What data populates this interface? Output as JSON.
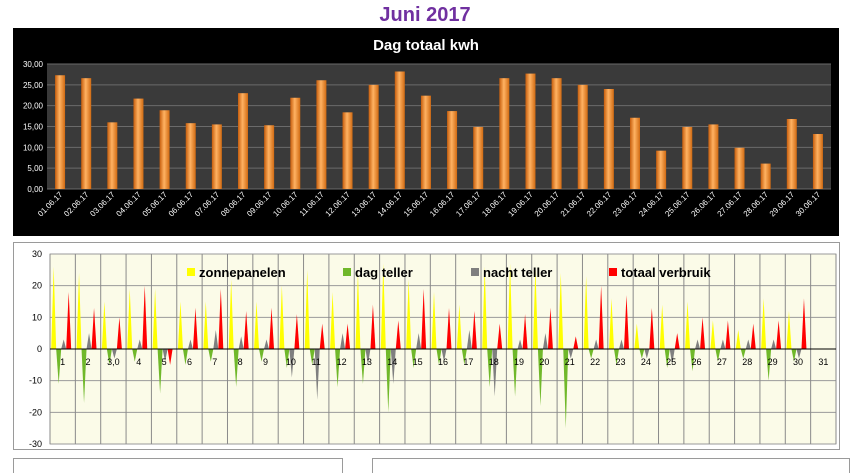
{
  "page": {
    "title": "Juni 2017"
  },
  "colors": {
    "title": "#7030a0",
    "chart1_background": "#000000",
    "chart1_plot": "#3a3a3a",
    "bar_orange": "#f08a24",
    "chart2_background": "#fbfbe8",
    "zonnepanelen": "#ffff00",
    "dag_teller": "#70b82a",
    "nacht_teller": "#7f7f7f",
    "totaal_verbruik": "#ff0000"
  },
  "chart_data": [
    {
      "type": "bar",
      "title": "Dag totaal kwh",
      "categories": [
        "01.06.17",
        "02.06.17",
        "03.06.17",
        "04.06.17",
        "05.06.17",
        "06.06.17",
        "07.06.17",
        "08.06.17",
        "09.06.17",
        "10.06.17",
        "11.06.17",
        "12.06.17",
        "13.06.17",
        "14.06.17",
        "15.06.17",
        "16.06.17",
        "17.06.17",
        "18.06.17",
        "19.06.17",
        "20.06.17",
        "21.06.17",
        "22.06.17",
        "23.06.17",
        "24.06.17",
        "25.06.17",
        "26.06.17",
        "27.06.17",
        "28.06.17",
        "29.06.17",
        "30.06.17"
      ],
      "values": [
        27.3,
        26.6,
        16.0,
        21.7,
        18.9,
        15.8,
        15.5,
        23.0,
        15.3,
        21.9,
        26.1,
        18.4,
        25.0,
        28.2,
        22.4,
        18.7,
        14.9,
        26.6,
        27.7,
        26.6,
        25.0,
        24.0,
        17.1,
        9.2,
        14.9,
        15.5,
        9.9,
        6.1,
        16.8,
        13.2
      ],
      "ylim": [
        0,
        30
      ],
      "yticks": [
        "0,00",
        "5,00",
        "10,00",
        "15,00",
        "20,00",
        "25,00",
        "30,00"
      ],
      "grid": true
    },
    {
      "type": "line",
      "subtype": "area-spikes",
      "ylim": [
        -30,
        30
      ],
      "yticks": [
        "30",
        "20",
        "10",
        "0",
        "-10",
        "-20",
        "-30"
      ],
      "xlabels": [
        "1",
        "2",
        "3,0",
        "4",
        "5",
        "6",
        "7",
        "8",
        "9",
        "10",
        "11",
        "12",
        "13",
        "14",
        "15",
        "16",
        "17",
        "18",
        "19",
        "20",
        "21",
        "22",
        "23",
        "24",
        "25",
        "26",
        "27",
        "28",
        "29",
        "30",
        "31"
      ],
      "legend": [
        "zonnepanelen",
        "dag teller",
        "nacht teller",
        "totaal verbruik"
      ],
      "legend_position": "top",
      "grid": true,
      "series": [
        {
          "name": "zonnepanelen",
          "values": [
            26,
            24,
            15,
            19,
            19,
            15,
            15,
            22,
            15,
            20,
            25,
            18,
            24,
            27,
            22,
            18,
            14,
            26,
            27,
            26,
            24,
            23,
            16,
            8,
            14,
            15,
            9,
            6,
            16,
            12
          ]
        },
        {
          "name": "dag teller",
          "values": [
            -11,
            -17,
            -5,
            -4,
            -14,
            -5,
            -4,
            -12,
            -4,
            -6,
            -5,
            -12,
            -11,
            -20,
            -6,
            -5,
            -5,
            -12,
            -15,
            -18,
            -25,
            -3,
            -5,
            -3,
            -6,
            -7,
            -4,
            -3,
            -10,
            -4
          ]
        },
        {
          "name": "nacht teller",
          "values": [
            3,
            5,
            -3,
            3,
            -4,
            3,
            6,
            4,
            3,
            -9,
            -16,
            5,
            -5,
            -11,
            5,
            -4,
            6,
            -15,
            3,
            5,
            -3,
            3,
            3,
            -3,
            -5,
            3,
            3,
            3,
            3,
            -3
          ]
        },
        {
          "name": "totaal verbruik",
          "values": [
            18,
            13,
            10,
            20,
            -5,
            13,
            19,
            12,
            13,
            11,
            8,
            8,
            14,
            9,
            19,
            13,
            12,
            8,
            11,
            13,
            4,
            20,
            17,
            13,
            5,
            10,
            9,
            8,
            9,
            16
          ]
        }
      ]
    }
  ]
}
